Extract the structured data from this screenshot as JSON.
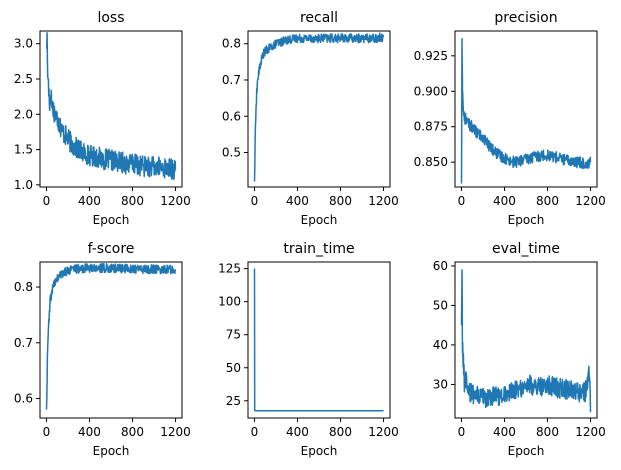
{
  "chart_data": [
    {
      "type": "line",
      "title": "loss",
      "xlabel": "Epoch",
      "xlim": [
        -60,
        1260
      ],
      "ylim": [
        0.97,
        3.18
      ],
      "xticks": [
        0,
        400,
        800,
        1200
      ],
      "xticklabels": [
        "0",
        "400",
        "800",
        "1200"
      ],
      "yticks": [
        1.0,
        1.5,
        2.0,
        2.5,
        3.0
      ],
      "yticklabels": [
        "1.0",
        "1.5",
        "2.0",
        "2.5",
        "3.0"
      ],
      "x": [
        0,
        5,
        10,
        15,
        20,
        30,
        40,
        50,
        60,
        80,
        100,
        125,
        150,
        175,
        200,
        250,
        300,
        350,
        400,
        450,
        500,
        550,
        600,
        650,
        700,
        750,
        800,
        850,
        900,
        950,
        1000,
        1050,
        1100,
        1150,
        1200
      ],
      "values": [
        2.95,
        3.1,
        2.7,
        2.5,
        2.35,
        2.2,
        2.3,
        2.15,
        2.1,
        2.0,
        1.95,
        1.85,
        1.75,
        1.7,
        1.65,
        1.55,
        1.5,
        1.45,
        1.42,
        1.4,
        1.38,
        1.36,
        1.35,
        1.33,
        1.32,
        1.3,
        1.3,
        1.28,
        1.27,
        1.26,
        1.25,
        1.25,
        1.24,
        1.23,
        1.22
      ],
      "noise": 0.15,
      "grid": false
    },
    {
      "type": "line",
      "title": "recall",
      "xlabel": "Epoch",
      "xlim": [
        -60,
        1260
      ],
      "ylim": [
        0.405,
        0.835
      ],
      "xticks": [
        0,
        400,
        800,
        1200
      ],
      "xticklabels": [
        "0",
        "400",
        "800",
        "1200"
      ],
      "yticks": [
        0.5,
        0.6,
        0.7,
        0.8
      ],
      "yticklabels": [
        "0.5",
        "0.6",
        "0.7",
        "0.8"
      ],
      "x": [
        0,
        5,
        10,
        15,
        20,
        30,
        40,
        60,
        80,
        100,
        150,
        200,
        250,
        300,
        400,
        500,
        600,
        700,
        800,
        900,
        1000,
        1100,
        1200
      ],
      "values": [
        0.42,
        0.5,
        0.58,
        0.63,
        0.66,
        0.7,
        0.72,
        0.75,
        0.77,
        0.78,
        0.79,
        0.8,
        0.805,
        0.81,
        0.815,
        0.815,
        0.815,
        0.815,
        0.815,
        0.815,
        0.815,
        0.815,
        0.818
      ],
      "noise": 0.012,
      "grid": false
    },
    {
      "type": "line",
      "title": "precision",
      "xlabel": "Epoch",
      "xlim": [
        -60,
        1260
      ],
      "ylim": [
        0.8325,
        0.9425
      ],
      "xticks": [
        0,
        400,
        800,
        1200
      ],
      "xticklabels": [
        "0",
        "400",
        "800",
        "1200"
      ],
      "yticks": [
        0.85,
        0.875,
        0.9,
        0.925
      ],
      "yticklabels": [
        "0.850",
        "0.875",
        "0.900",
        "0.925"
      ],
      "x": [
        0,
        5,
        10,
        15,
        20,
        30,
        40,
        60,
        80,
        100,
        150,
        200,
        250,
        300,
        350,
        400,
        450,
        500,
        550,
        600,
        650,
        700,
        750,
        800,
        850,
        900,
        950,
        1000,
        1050,
        1100,
        1150,
        1200
      ],
      "values": [
        0.835,
        0.937,
        0.9,
        0.89,
        0.885,
        0.88,
        0.882,
        0.878,
        0.876,
        0.875,
        0.87,
        0.868,
        0.862,
        0.858,
        0.855,
        0.853,
        0.851,
        0.85,
        0.851,
        0.852,
        0.853,
        0.854,
        0.855,
        0.855,
        0.854,
        0.853,
        0.852,
        0.851,
        0.85,
        0.85,
        0.849,
        0.85
      ],
      "noise": 0.004,
      "grid": false
    },
    {
      "type": "line",
      "title": "f-score",
      "xlabel": "Epoch",
      "xlim": [
        -60,
        1260
      ],
      "ylim": [
        0.565,
        0.845
      ],
      "xticks": [
        0,
        400,
        800,
        1200
      ],
      "xticklabels": [
        "0",
        "400",
        "800",
        "1200"
      ],
      "yticks": [
        0.6,
        0.7,
        0.8
      ],
      "yticklabels": [
        "0.6",
        "0.7",
        "0.8"
      ],
      "x": [
        0,
        5,
        10,
        15,
        20,
        30,
        40,
        60,
        80,
        100,
        150,
        200,
        300,
        400,
        500,
        600,
        700,
        800,
        900,
        1000,
        1100,
        1200
      ],
      "values": [
        0.58,
        0.62,
        0.68,
        0.71,
        0.73,
        0.76,
        0.78,
        0.8,
        0.81,
        0.815,
        0.825,
        0.83,
        0.833,
        0.834,
        0.834,
        0.834,
        0.833,
        0.833,
        0.832,
        0.832,
        0.832,
        0.832
      ],
      "noise": 0.008,
      "grid": false
    },
    {
      "type": "line",
      "title": "train_time",
      "xlabel": "Epoch",
      "xlim": [
        -60,
        1260
      ],
      "ylim": [
        12,
        130
      ],
      "xticks": [
        0,
        400,
        800,
        1200
      ],
      "xticklabels": [
        "0",
        "400",
        "800",
        "1200"
      ],
      "yticks": [
        25,
        50,
        75,
        100,
        125
      ],
      "yticklabels": [
        "25",
        "50",
        "75",
        "100",
        "125"
      ],
      "x": [
        0,
        2,
        4,
        10,
        100,
        200,
        400,
        600,
        800,
        1000,
        1200
      ],
      "values": [
        125,
        18,
        17.5,
        17.5,
        17.5,
        17.5,
        17.5,
        17.5,
        17.5,
        17.5,
        17.5
      ],
      "noise": 0,
      "grid": false
    },
    {
      "type": "line",
      "title": "eval_time",
      "xlabel": "Epoch",
      "xlim": [
        -60,
        1260
      ],
      "ylim": [
        21.5,
        61
      ],
      "xticks": [
        0,
        400,
        800,
        1200
      ],
      "xticklabels": [
        "0",
        "400",
        "800",
        "1200"
      ],
      "yticks": [
        30,
        40,
        50,
        60
      ],
      "yticklabels": [
        "30",
        "40",
        "50",
        "60"
      ],
      "x": [
        0,
        5,
        10,
        20,
        30,
        40,
        60,
        80,
        100,
        150,
        200,
        250,
        300,
        350,
        400,
        450,
        500,
        550,
        600,
        650,
        700,
        750,
        800,
        850,
        900,
        950,
        1000,
        1050,
        1100,
        1150,
        1190,
        1200
      ],
      "values": [
        45,
        59,
        38,
        34,
        30,
        32,
        29,
        28,
        27.5,
        27,
        26.5,
        26.5,
        27,
        27,
        27.5,
        28,
        28.5,
        29,
        29.5,
        30,
        29,
        29.5,
        30,
        29.5,
        29,
        29,
        28.5,
        28.5,
        28,
        28,
        33,
        23
      ],
      "noise": 2.5,
      "grid": false
    }
  ]
}
